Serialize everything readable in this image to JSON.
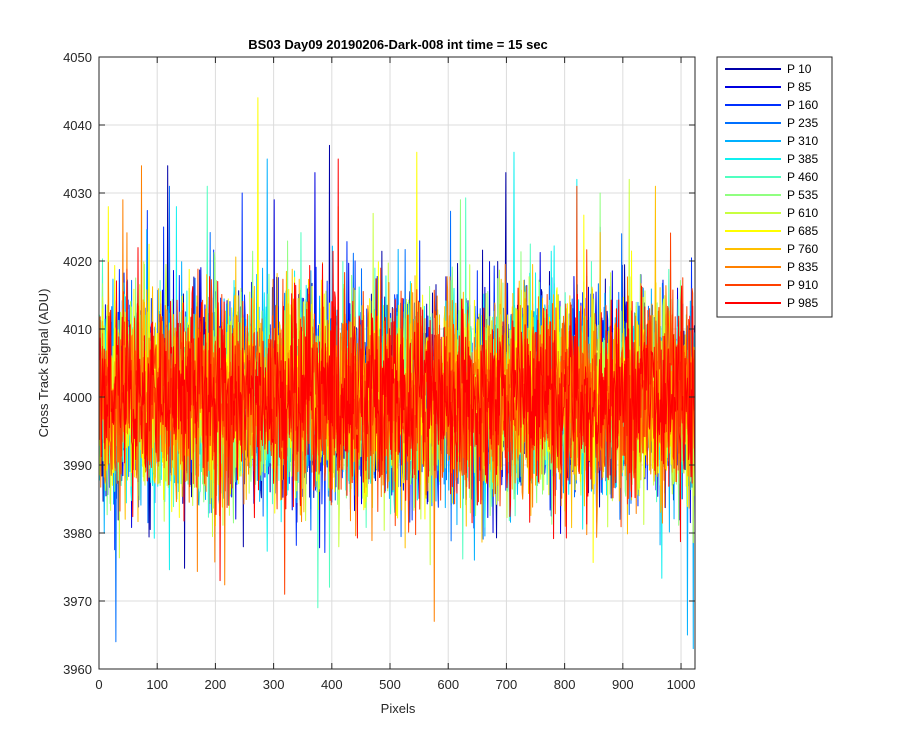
{
  "chart_data": {
    "type": "line",
    "title": "BS03 Day09 20190206-Dark-008 int time = 15 sec",
    "xlabel": "Pixels",
    "ylabel": "Cross Track Signal (ADU)",
    "xlim": [
      0,
      1024
    ],
    "ylim": [
      3960,
      4050
    ],
    "x_ticks": [
      0,
      100,
      200,
      300,
      400,
      500,
      600,
      700,
      800,
      900,
      1000
    ],
    "y_ticks": [
      3960,
      3970,
      3980,
      3990,
      4000,
      4010,
      4020,
      4030,
      4040,
      4050
    ],
    "grid": true,
    "legend_position": "outside top-right",
    "series": [
      {
        "name": "P 10",
        "color": "#0000a8",
        "mean": 4000,
        "min": 3974,
        "max": 4037,
        "spikes": [
          [
            117,
            4034
          ],
          [
            395,
            4037
          ],
          [
            698,
            4033
          ]
        ]
      },
      {
        "name": "P 85",
        "color": "#0000e0",
        "mean": 4000,
        "min": 3974,
        "max": 4033,
        "spikes": [
          [
            370,
            4033
          ],
          [
            300,
            4029
          ],
          [
            860,
            4025
          ]
        ]
      },
      {
        "name": "P 160",
        "color": "#0030ff",
        "mean": 4000,
        "min": 3975,
        "max": 4030,
        "spikes": [
          [
            110,
            4025
          ],
          [
            245,
            4030
          ]
        ]
      },
      {
        "name": "P 235",
        "color": "#0070ff",
        "mean": 4000,
        "min": 3964,
        "max": 4031,
        "spikes": [
          [
            28,
            3964
          ],
          [
            120,
            4031
          ]
        ]
      },
      {
        "name": "P 310",
        "color": "#00b0ff",
        "mean": 4000,
        "min": 3963,
        "max": 4035,
        "spikes": [
          [
            1020,
            3963
          ],
          [
            1010,
            3965
          ],
          [
            288,
            4035
          ]
        ]
      },
      {
        "name": "P 385",
        "color": "#10f0f0",
        "mean": 4000,
        "min": 3970,
        "max": 4036,
        "spikes": [
          [
            712,
            4036
          ],
          [
            820,
            4032
          ]
        ]
      },
      {
        "name": "P 460",
        "color": "#50ffc0",
        "mean": 4000,
        "min": 3969,
        "max": 4031,
        "spikes": [
          [
            375,
            3969
          ],
          [
            185,
            4031
          ]
        ]
      },
      {
        "name": "P 535",
        "color": "#90ff80",
        "mean": 4000,
        "min": 3971,
        "max": 4030,
        "spikes": [
          [
            620,
            4029
          ],
          [
            860,
            4030
          ]
        ]
      },
      {
        "name": "P 610",
        "color": "#c8ff40",
        "mean": 4000,
        "min": 3972,
        "max": 4032,
        "spikes": [
          [
            910,
            4032
          ],
          [
            470,
            4027
          ]
        ]
      },
      {
        "name": "P 685",
        "color": "#ffff00",
        "mean": 4000,
        "min": 3972,
        "max": 4044,
        "spikes": [
          [
            272,
            4044
          ],
          [
            545,
            4036
          ],
          [
            15,
            4028
          ]
        ]
      },
      {
        "name": "P 760",
        "color": "#ffc000",
        "mean": 4000,
        "min": 3972,
        "max": 4031,
        "spikes": [
          [
            410,
            4028
          ],
          [
            955,
            4031
          ]
        ]
      },
      {
        "name": "P 835",
        "color": "#ff8000",
        "mean": 4000,
        "min": 3967,
        "max": 4034,
        "spikes": [
          [
            575,
            3967
          ],
          [
            72,
            4034
          ],
          [
            40,
            4029
          ]
        ]
      },
      {
        "name": "P 910",
        "color": "#ff4000",
        "mean": 4000,
        "min": 3971,
        "max": 4031,
        "spikes": [
          [
            318,
            3971
          ],
          [
            820,
            4031
          ]
        ]
      },
      {
        "name": "P 985",
        "color": "#ff0000",
        "mean": 4000,
        "min": 3973,
        "max": 4035,
        "spikes": [
          [
            410,
            4035
          ],
          [
            207,
            3973
          ]
        ]
      }
    ]
  }
}
